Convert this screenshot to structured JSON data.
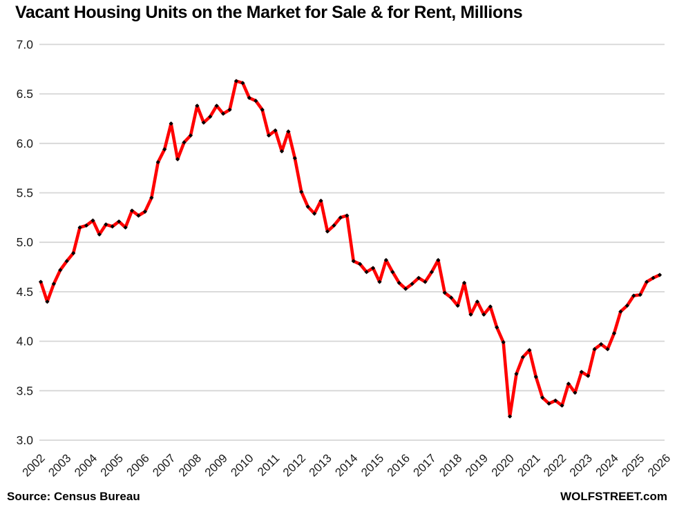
{
  "header": {
    "title": "Vacant Housing Units on the Market for Sale & for Rent, Millions"
  },
  "footer": {
    "source_note": "Source: Census Bureau",
    "watermark": "WOLFSTREET.com"
  },
  "colors": {
    "line": "#ff0000",
    "marker": "#000000",
    "gridline": "#d6d6d6",
    "axis_text": "#1a1a1a",
    "background": "#ffffff"
  },
  "chart_data": {
    "type": "line",
    "title": "Vacant Housing Units on the Market for Sale & for Rent, Millions",
    "xlabel": "",
    "ylabel": "",
    "ylim": [
      3.0,
      7.0
    ],
    "y_tick_step": 0.5,
    "grid": "horizontal",
    "legend_position": "none",
    "frequency": "quarterly",
    "x_start": "2002-Q1",
    "x_end": "2025-Q4",
    "y_tick_labels": [
      "7.0",
      "6.5",
      "6.0",
      "5.5",
      "5.0",
      "4.5",
      "4.0",
      "3.5",
      "3.0"
    ],
    "x_tick_labels": [
      "2002",
      "2003",
      "2004",
      "2005",
      "2006",
      "2007",
      "2008",
      "2009",
      "2010",
      "2011",
      "2012",
      "2013",
      "2014",
      "2015",
      "2016",
      "2017",
      "2018",
      "2019",
      "2020",
      "2021",
      "2022",
      "2023",
      "2024",
      "2025",
      "2026"
    ],
    "series": [
      {
        "name": "Vacant housing units for sale & for rent, millions",
        "values": [
          4.6,
          4.4,
          4.58,
          4.72,
          4.81,
          4.89,
          5.15,
          5.17,
          5.22,
          5.08,
          5.18,
          5.16,
          5.21,
          5.15,
          5.32,
          5.27,
          5.31,
          5.45,
          5.81,
          5.94,
          6.2,
          5.84,
          6.01,
          6.08,
          6.38,
          6.21,
          6.27,
          6.38,
          6.3,
          6.34,
          6.63,
          6.61,
          6.46,
          6.43,
          6.34,
          6.08,
          6.13,
          5.92,
          6.12,
          5.85,
          5.51,
          5.36,
          5.29,
          5.42,
          5.11,
          5.17,
          5.25,
          5.27,
          4.81,
          4.78,
          4.7,
          4.74,
          4.6,
          4.82,
          4.7,
          4.59,
          4.53,
          4.58,
          4.64,
          4.6,
          4.7,
          4.82,
          4.49,
          4.44,
          4.36,
          4.59,
          4.27,
          4.4,
          4.27,
          4.35,
          4.14,
          3.99,
          3.24,
          3.67,
          3.84,
          3.91,
          3.64,
          3.43,
          3.37,
          3.4,
          3.35,
          3.57,
          3.48,
          3.69,
          3.65,
          3.92,
          3.97,
          3.92,
          4.08,
          4.3,
          4.36,
          4.46,
          4.47,
          4.6,
          4.64,
          4.67
        ]
      }
    ]
  }
}
